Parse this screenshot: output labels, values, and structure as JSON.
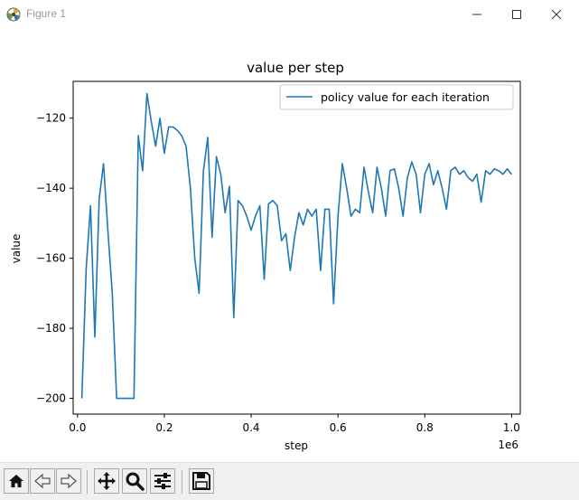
{
  "window": {
    "title": "Figure 1",
    "controls": [
      "minimize",
      "maximize",
      "close"
    ]
  },
  "toolbar": {
    "buttons": [
      {
        "name": "home-button",
        "icon": "home-icon"
      },
      {
        "name": "back-button",
        "icon": "back-arrow-icon"
      },
      {
        "name": "forward-button",
        "icon": "forward-arrow-icon"
      },
      {
        "name": "pan-button",
        "icon": "move-icon"
      },
      {
        "name": "zoom-button",
        "icon": "magnifier-icon"
      },
      {
        "name": "configure-subplots-button",
        "icon": "sliders-icon"
      },
      {
        "name": "save-button",
        "icon": "floppy-disk-icon"
      }
    ]
  },
  "chart_data": {
    "type": "line",
    "title": "value per step",
    "xlabel": "step",
    "ylabel": "value",
    "x_offset_text": "1e6",
    "xlim": [
      -0.01,
      1.02
    ],
    "ylim": [
      -204.5,
      -109.5
    ],
    "xticks": [
      0.0,
      0.2,
      0.4,
      0.6,
      0.8,
      1.0
    ],
    "xtick_labels": [
      "0.0",
      "0.2",
      "0.4",
      "0.6",
      "0.8",
      "1.0"
    ],
    "yticks": [
      -200,
      -180,
      -160,
      -140,
      -120
    ],
    "ytick_labels": [
      "−200",
      "−180",
      "−160",
      "−140",
      "−120"
    ],
    "legend_position": "top-right",
    "grid": false,
    "color": "#1f77b4",
    "series": [
      {
        "name": "policy value for each iteration",
        "x": [
          0.01,
          0.02,
          0.03,
          0.04,
          0.05,
          0.06,
          0.07,
          0.08,
          0.09,
          0.1,
          0.11,
          0.12,
          0.13,
          0.14,
          0.15,
          0.16,
          0.17,
          0.18,
          0.19,
          0.2,
          0.21,
          0.22,
          0.23,
          0.24,
          0.25,
          0.26,
          0.27,
          0.28,
          0.29,
          0.3,
          0.31,
          0.32,
          0.33,
          0.34,
          0.35,
          0.36,
          0.37,
          0.38,
          0.39,
          0.4,
          0.41,
          0.42,
          0.43,
          0.44,
          0.45,
          0.46,
          0.47,
          0.48,
          0.49,
          0.5,
          0.51,
          0.52,
          0.53,
          0.54,
          0.55,
          0.56,
          0.57,
          0.58,
          0.59,
          0.6,
          0.61,
          0.62,
          0.63,
          0.64,
          0.65,
          0.66,
          0.67,
          0.68,
          0.69,
          0.7,
          0.71,
          0.72,
          0.73,
          0.74,
          0.75,
          0.76,
          0.77,
          0.78,
          0.79,
          0.8,
          0.81,
          0.82,
          0.83,
          0.84,
          0.85,
          0.86,
          0.87,
          0.88,
          0.89,
          0.9,
          0.91,
          0.92,
          0.93,
          0.94,
          0.95,
          0.96,
          0.97,
          0.98,
          0.99,
          1.0
        ],
        "values": [
          -200,
          -163,
          -145,
          -182.5,
          -143,
          -133,
          -152,
          -170,
          -200,
          -200,
          -200,
          -200,
          -200,
          -125,
          -135,
          -113,
          -121,
          -128,
          -120,
          -130,
          -122.5,
          -122.5,
          -123.5,
          -125,
          -128,
          -140,
          -160,
          -170,
          -135,
          -125.5,
          -154,
          -131,
          -136,
          -147,
          -139.5,
          -177,
          -143.5,
          -145,
          -148,
          -152,
          -148,
          -145,
          -166,
          -144.5,
          -143.5,
          -145,
          -155,
          -153,
          -163.5,
          -154,
          -147,
          -150.5,
          -146,
          -148,
          -146,
          -163.5,
          -146,
          -146,
          -173,
          -148,
          -133,
          -140,
          -148,
          -146,
          -147,
          -134,
          -141,
          -147,
          -134,
          -140,
          -148,
          -135,
          -134.5,
          -140,
          -148,
          -137,
          -132.5,
          -136,
          -147,
          -136,
          -133,
          -139,
          -135,
          -140,
          -146,
          -135,
          -134,
          -136,
          -135,
          -137,
          -138,
          -136,
          -144,
          -135,
          -136,
          -134.5,
          -135,
          -136,
          -134.5,
          -136
        ]
      }
    ]
  }
}
